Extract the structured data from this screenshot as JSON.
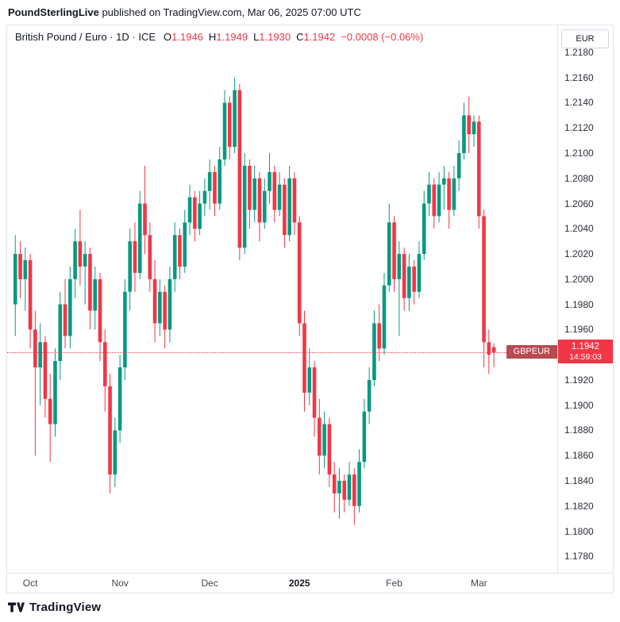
{
  "header": {
    "publisher": "PoundSterlingLive",
    "publish_info": " published on TradingView.com, Mar 06, 2025 07:00 UTC"
  },
  "legend": {
    "title": "British Pound / Euro · 1D · ICE",
    "o_label": "O",
    "o": "1.1946",
    "h_label": "H",
    "h": "1.1949",
    "l_label": "L",
    "l": "1.1930",
    "c_label": "C",
    "c": "1.1942",
    "change": "−0.0008 (−0.06%)"
  },
  "axis": {
    "currency": "EUR",
    "price_labels": [
      "1.2180",
      "1.2160",
      "1.2140",
      "1.2120",
      "1.2100",
      "1.2080",
      "1.2060",
      "1.2040",
      "1.2020",
      "1.2000",
      "1.1980",
      "1.1960",
      "1.1920",
      "1.1900",
      "1.1880",
      "1.1860",
      "1.1840",
      "1.1820",
      "1.1800",
      "1.1780"
    ]
  },
  "price_line": {
    "symbol_tag": "GBPEUR",
    "price": "1.1942",
    "countdown": "14:59:03",
    "value": 1.1942
  },
  "time_axis": {
    "labels": [
      {
        "text": "Oct",
        "index": 3,
        "bold": false
      },
      {
        "text": "Nov",
        "index": 21,
        "bold": false
      },
      {
        "text": "Dec",
        "index": 39,
        "bold": false
      },
      {
        "text": "2025",
        "index": 57,
        "bold": true
      },
      {
        "text": "Feb",
        "index": 76,
        "bold": false
      },
      {
        "text": "Mar",
        "index": 93,
        "bold": false
      }
    ]
  },
  "footer": {
    "brand": "TradingView"
  },
  "chart_data": {
    "type": "candlestick",
    "title": "British Pound / Euro, 1D, ICE",
    "symbol": "GBPEUR",
    "interval": "1D",
    "exchange": "ICE",
    "quote_currency": "EUR",
    "up_color": "#089981",
    "down_color": "#F23645",
    "ylim": [
      1.1767,
      1.2185
    ],
    "y_tick_step": 0.002,
    "x_range": "Oct 2024 – Mar 6, 2025",
    "legend_position": "top-left",
    "grid": false,
    "last_bar": {
      "open": 1.1946,
      "high": 1.1949,
      "low": 1.193,
      "close": 1.1942,
      "change": -0.0008,
      "change_pct": -0.06
    },
    "columns": [
      "open",
      "high",
      "low",
      "close"
    ],
    "candles": [
      [
        1.198,
        1.2035,
        1.1955,
        1.202
      ],
      [
        1.202,
        1.203,
        1.1985,
        1.2
      ],
      [
        1.2,
        1.2025,
        1.1975,
        1.2015
      ],
      [
        1.2015,
        1.202,
        1.1945,
        1.196
      ],
      [
        1.196,
        1.1975,
        1.186,
        1.193
      ],
      [
        1.193,
        1.1965,
        1.19,
        1.195
      ],
      [
        1.195,
        1.1955,
        1.189,
        1.1905
      ],
      [
        1.1905,
        1.1925,
        1.1855,
        1.1885
      ],
      [
        1.1885,
        1.1945,
        1.1875,
        1.1935
      ],
      [
        1.1935,
        1.199,
        1.192,
        1.198
      ],
      [
        1.198,
        1.2,
        1.1945,
        1.1955
      ],
      [
        1.1955,
        1.201,
        1.1945,
        1.2
      ],
      [
        1.2,
        1.204,
        1.1985,
        1.203
      ],
      [
        1.203,
        1.2055,
        1.1995,
        1.201
      ],
      [
        1.201,
        1.203,
        1.198,
        1.202
      ],
      [
        1.202,
        1.2025,
        1.196,
        1.1975
      ],
      [
        1.1975,
        1.201,
        1.196,
        1.2
      ],
      [
        1.2,
        1.2005,
        1.1935,
        1.195
      ],
      [
        1.195,
        1.196,
        1.1895,
        1.1915
      ],
      [
        1.1915,
        1.1925,
        1.183,
        1.1845
      ],
      [
        1.1845,
        1.189,
        1.1835,
        1.188
      ],
      [
        1.188,
        1.194,
        1.187,
        1.193
      ],
      [
        1.193,
        1.2,
        1.192,
        1.199
      ],
      [
        1.199,
        1.204,
        1.1975,
        1.203
      ],
      [
        1.203,
        1.2045,
        1.199,
        1.2005
      ],
      [
        1.2005,
        1.207,
        1.2,
        1.206
      ],
      [
        1.206,
        1.209,
        1.202,
        1.2035
      ],
      [
        1.2035,
        1.2045,
        1.199,
        1.2
      ],
      [
        1.2,
        1.2015,
        1.195,
        1.1965
      ],
      [
        1.1965,
        1.2,
        1.1955,
        1.199
      ],
      [
        1.199,
        1.1995,
        1.1945,
        1.196
      ],
      [
        1.196,
        1.201,
        1.195,
        1.2
      ],
      [
        1.2,
        1.2045,
        1.199,
        1.2035
      ],
      [
        1.2035,
        1.204,
        1.2,
        1.201
      ],
      [
        1.201,
        1.2055,
        1.2005,
        1.2045
      ],
      [
        1.2045,
        1.2075,
        1.2035,
        1.2065
      ],
      [
        1.2065,
        1.207,
        1.203,
        1.204
      ],
      [
        1.204,
        1.207,
        1.2035,
        1.206
      ],
      [
        1.206,
        1.208,
        1.205,
        1.207
      ],
      [
        1.207,
        1.2095,
        1.2055,
        1.2085
      ],
      [
        1.2085,
        1.209,
        1.205,
        1.206
      ],
      [
        1.206,
        1.2105,
        1.2055,
        1.2095
      ],
      [
        1.2095,
        1.215,
        1.209,
        1.214
      ],
      [
        1.214,
        1.2145,
        1.2095,
        1.2105
      ],
      [
        1.2105,
        1.216,
        1.21,
        1.215
      ],
      [
        1.215,
        1.2155,
        1.2015,
        1.2025
      ],
      [
        1.2025,
        1.21,
        1.202,
        1.209
      ],
      [
        1.209,
        1.2095,
        1.204,
        1.2055
      ],
      [
        1.2055,
        1.209,
        1.2045,
        1.208
      ],
      [
        1.208,
        1.2085,
        1.203,
        1.2045
      ],
      [
        1.2045,
        1.208,
        1.204,
        1.207
      ],
      [
        1.207,
        1.21,
        1.206,
        1.2085
      ],
      [
        1.2085,
        1.209,
        1.2045,
        1.2055
      ],
      [
        1.2055,
        1.2085,
        1.205,
        1.2075
      ],
      [
        1.2075,
        1.208,
        1.2025,
        1.2035
      ],
      [
        1.2035,
        1.209,
        1.203,
        1.208
      ],
      [
        1.208,
        1.2085,
        1.2035,
        1.2045
      ],
      [
        1.2045,
        1.205,
        1.1955,
        1.1965
      ],
      [
        1.1965,
        1.1975,
        1.1895,
        1.191
      ],
      [
        1.191,
        1.1945,
        1.19,
        1.193
      ],
      [
        1.193,
        1.1935,
        1.1875,
        1.189
      ],
      [
        1.189,
        1.1905,
        1.1845,
        1.186
      ],
      [
        1.186,
        1.1895,
        1.185,
        1.1885
      ],
      [
        1.1885,
        1.189,
        1.1835,
        1.1845
      ],
      [
        1.1845,
        1.1855,
        1.1815,
        1.183
      ],
      [
        1.183,
        1.185,
        1.181,
        1.184
      ],
      [
        1.184,
        1.1845,
        1.1815,
        1.1825
      ],
      [
        1.1825,
        1.1855,
        1.182,
        1.1845
      ],
      [
        1.1845,
        1.185,
        1.1805,
        1.182
      ],
      [
        1.182,
        1.1865,
        1.1815,
        1.1855
      ],
      [
        1.1855,
        1.1905,
        1.185,
        1.1895
      ],
      [
        1.1895,
        1.193,
        1.1885,
        1.192
      ],
      [
        1.192,
        1.1975,
        1.1915,
        1.1965
      ],
      [
        1.1965,
        1.198,
        1.1935,
        1.1945
      ],
      [
        1.1945,
        1.2005,
        1.194,
        1.1995
      ],
      [
        1.1995,
        1.206,
        1.199,
        1.2045
      ],
      [
        1.2045,
        1.205,
        1.199,
        1.2
      ],
      [
        1.2,
        1.203,
        1.1955,
        1.202
      ],
      [
        1.202,
        1.2025,
        1.1975,
        1.1985
      ],
      [
        1.1985,
        1.202,
        1.1975,
        1.201
      ],
      [
        1.201,
        1.2015,
        1.198,
        1.199
      ],
      [
        1.199,
        1.203,
        1.1985,
        1.202
      ],
      [
        1.202,
        1.207,
        1.2015,
        1.206
      ],
      [
        1.206,
        1.2085,
        1.205,
        1.2075
      ],
      [
        1.2075,
        1.208,
        1.204,
        1.205
      ],
      [
        1.205,
        1.2085,
        1.2045,
        1.2075
      ],
      [
        1.2075,
        1.209,
        1.2055,
        1.208
      ],
      [
        1.208,
        1.2085,
        1.204,
        1.2055
      ],
      [
        1.2055,
        1.209,
        1.205,
        1.208
      ],
      [
        1.208,
        1.211,
        1.207,
        1.21
      ],
      [
        1.21,
        1.214,
        1.2095,
        1.213
      ],
      [
        1.213,
        1.2145,
        1.21,
        1.2115
      ],
      [
        1.2115,
        1.213,
        1.2105,
        1.2125
      ],
      [
        1.2125,
        1.213,
        1.204,
        1.205
      ],
      [
        1.205,
        1.2055,
        1.193,
        1.195
      ],
      [
        1.195,
        1.196,
        1.1925,
        1.194
      ],
      [
        1.1946,
        1.1949,
        1.193,
        1.1942
      ]
    ]
  }
}
